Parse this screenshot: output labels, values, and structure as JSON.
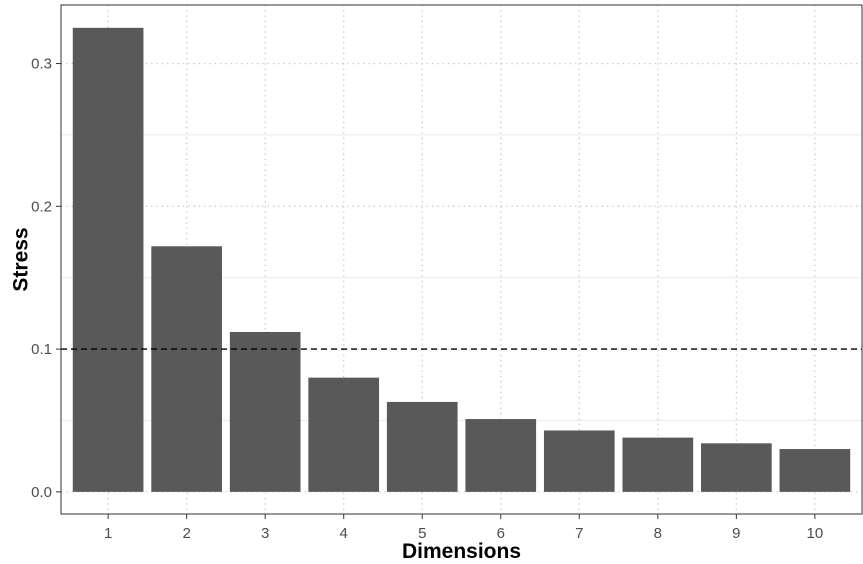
{
  "chart_data": {
    "type": "bar",
    "title": "",
    "xlabel": "Dimensions",
    "ylabel": "Stress",
    "categories": [
      "1",
      "2",
      "3",
      "4",
      "5",
      "6",
      "7",
      "8",
      "9",
      "10"
    ],
    "values": [
      0.325,
      0.172,
      0.112,
      0.08,
      0.063,
      0.051,
      0.043,
      0.038,
      0.034,
      0.03
    ],
    "ylim": [
      -0.0155,
      0.341
    ],
    "yticks": [
      "0.0",
      "0.1",
      "0.2",
      "0.3"
    ],
    "ytick_values": [
      0,
      0.1,
      0.2,
      0.3
    ],
    "reference_line": {
      "y": 0.1,
      "style": "dashed"
    },
    "grid": true,
    "legend": "none",
    "colors": {
      "bar": "#595959",
      "grid": "#c8c8c8",
      "reference_line": "#000000",
      "frame": "#333333"
    }
  }
}
